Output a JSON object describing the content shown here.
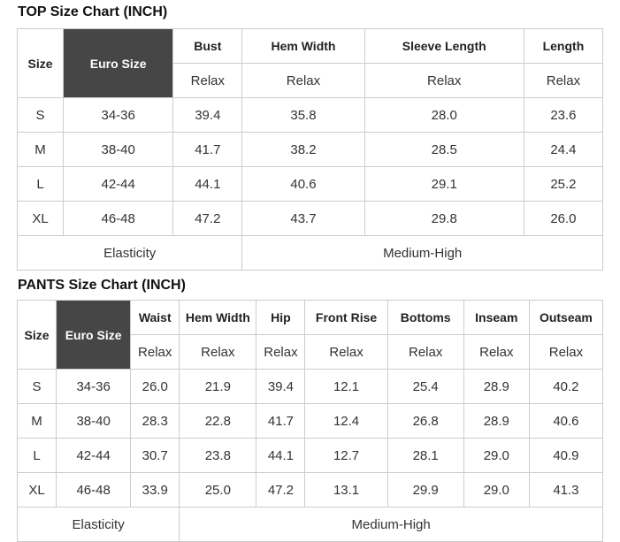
{
  "colors": {
    "dark_header_bg": "#464646",
    "dark_header_text": "#ffffff",
    "border": "#cccccc",
    "text": "#333333"
  },
  "tables": [
    {
      "id": "top",
      "title": "TOP Size Chart (INCH)",
      "corner_header": "Size",
      "euro_header": "Euro Size",
      "measure_headers": [
        "Bust",
        "Hem Width",
        "Sleeve Length",
        "Length"
      ],
      "fit_row_label": "Relax",
      "rows": [
        {
          "size": "S",
          "euro": "34-36",
          "values": [
            "39.4",
            "35.8",
            "28.0",
            "23.6"
          ]
        },
        {
          "size": "M",
          "euro": "38-40",
          "values": [
            "41.7",
            "38.2",
            "28.5",
            "24.4"
          ]
        },
        {
          "size": "L",
          "euro": "42-44",
          "values": [
            "44.1",
            "40.6",
            "29.1",
            "25.2"
          ]
        },
        {
          "size": "XL",
          "euro": "46-48",
          "values": [
            "47.2",
            "43.7",
            "29.8",
            "26.0"
          ]
        }
      ],
      "footer": {
        "label": "Elasticity",
        "value": "Medium-High",
        "label_colspan": 3,
        "value_colspan": 3
      }
    },
    {
      "id": "pants",
      "title": "PANTS Size Chart (INCH)",
      "corner_header": "Size",
      "euro_header": "Euro Size",
      "measure_headers": [
        "Waist",
        "Hem Width",
        "Hip",
        "Front Rise",
        "Bottoms",
        "Inseam",
        "Outseam"
      ],
      "fit_row_label": "Relax",
      "rows": [
        {
          "size": "S",
          "euro": "34-36",
          "values": [
            "26.0",
            "21.9",
            "39.4",
            "12.1",
            "25.4",
            "28.9",
            "40.2"
          ]
        },
        {
          "size": "M",
          "euro": "38-40",
          "values": [
            "28.3",
            "22.8",
            "41.7",
            "12.4",
            "26.8",
            "28.9",
            "40.6"
          ]
        },
        {
          "size": "L",
          "euro": "42-44",
          "values": [
            "30.7",
            "23.8",
            "44.1",
            "12.7",
            "28.1",
            "29.0",
            "40.9"
          ]
        },
        {
          "size": "XL",
          "euro": "46-48",
          "values": [
            "33.9",
            "25.0",
            "47.2",
            "13.1",
            "29.9",
            "29.0",
            "41.3"
          ]
        }
      ],
      "footer": {
        "label": "Elasticity",
        "value": "Medium-High",
        "label_colspan": 3,
        "value_colspan": 6
      }
    }
  ]
}
